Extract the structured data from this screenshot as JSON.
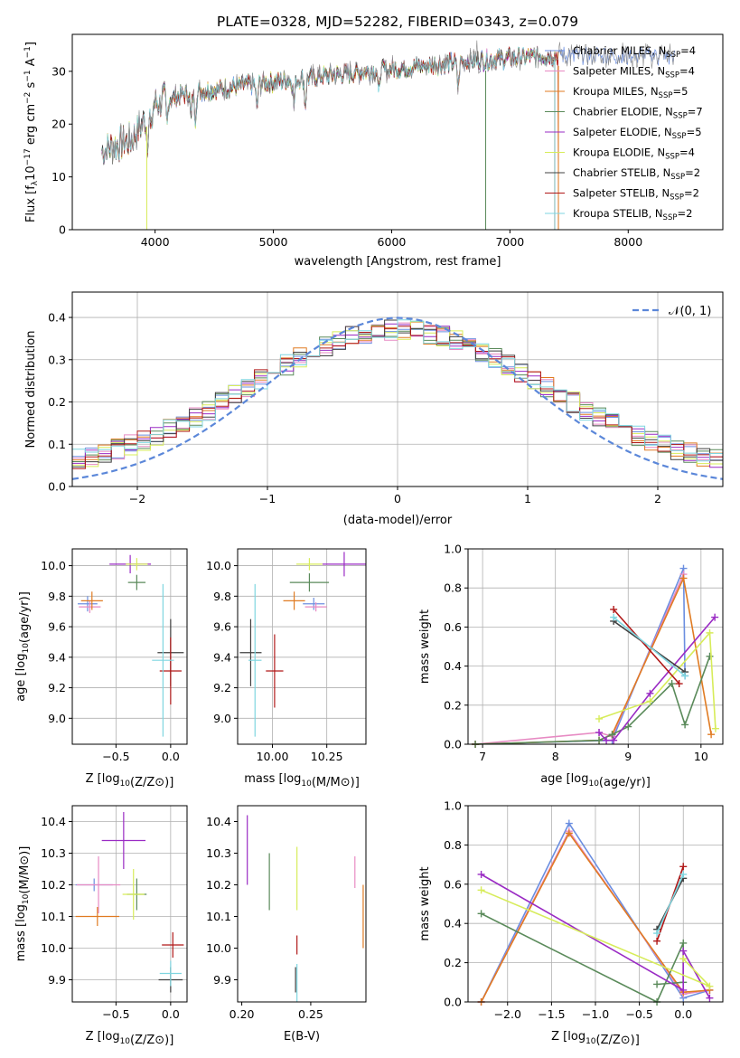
{
  "title": "PLATE=0328, MJD=52282, FIBERID=0343, z=0.079",
  "colors": {
    "chab_miles": "#6b8ee0",
    "salp_miles": "#e78ac3",
    "krou_miles": "#e07b22",
    "chab_elodie": "#5a8a5a",
    "salp_elodie": "#9a2bc4",
    "krou_elodie": "#d7ec5a",
    "chab_stelib": "#404040",
    "salp_stelib": "#b01818",
    "krou_stelib": "#7fd6e0"
  },
  "chart_data": [
    {
      "type": "line",
      "name": "spectrum",
      "xlabel": "wavelength [Angstrom, rest frame]",
      "ylabel": "Flux [fλ10^-17 erg cm^-2 s^-1 A^-1]",
      "xlim": [
        3300,
        8800
      ],
      "ylim": [
        0,
        37
      ],
      "xticks": [
        "4000",
        "5000",
        "6000",
        "7000",
        "8000"
      ],
      "yticks": [
        "0",
        "10",
        "20",
        "30"
      ],
      "legend_placement": "top-right",
      "series": [
        {
          "name": "Chabrier MILES, N_SSP=4",
          "key": "chab_miles"
        },
        {
          "name": "Salpeter MILES, N_SSP=4",
          "key": "salp_miles"
        },
        {
          "name": "Kroupa MILES, N_SSP=5",
          "key": "krou_miles"
        },
        {
          "name": "Chabrier ELODIE, N_SSP=7",
          "key": "chab_elodie"
        },
        {
          "name": "Salpeter ELODIE, N_SSP=5",
          "key": "salp_elodie"
        },
        {
          "name": "Kroupa ELODIE, N_SSP=4",
          "key": "krou_elodie"
        },
        {
          "name": "Chabrier STELIB, N_SSP=2",
          "key": "chab_stelib"
        },
        {
          "name": "Salpeter STELIB, N_SSP=2",
          "key": "salp_stelib"
        },
        {
          "name": "Kroupa STELIB, N_SSP=2",
          "key": "krou_stelib"
        }
      ],
      "continuum": {
        "x": [
          3550,
          3800,
          4000,
          4300,
          5000,
          6000,
          6700,
          7000,
          7400,
          8400
        ],
        "y": [
          15,
          17,
          24,
          26,
          28,
          30.5,
          32,
          32.5,
          33,
          33
        ]
      }
    },
    {
      "type": "bar",
      "name": "residual-histogram",
      "xlabel": "(data-model)/error",
      "ylabel": "Normed distribution",
      "xlim": [
        -2.5,
        2.5
      ],
      "ylim": [
        0,
        0.46
      ],
      "xticks": [
        "−2",
        "−1",
        "0",
        "1",
        "2"
      ],
      "yticks": [
        "0.0",
        "0.1",
        "0.2",
        "0.3",
        "0.4"
      ],
      "grid": true,
      "legend_placement": "top-right",
      "reference_label": "𝒩(0, 1)",
      "bin_width": 0.1
    },
    {
      "type": "scatter",
      "name": "age-vs-Z",
      "xlabel": "Z [log10(Z/Z⊙)]",
      "ylabel": "age  [log10(age/yr)]",
      "xlim": [
        -0.9,
        0.15
      ],
      "ylim": [
        8.83,
        10.11
      ],
      "xticks": [
        "−0.5",
        "0.0"
      ],
      "yticks": [
        "9.0",
        "9.2",
        "9.4",
        "9.6",
        "9.8",
        "10.0"
      ],
      "grid": true,
      "points": [
        {
          "key": "chab_miles",
          "x": -0.76,
          "xerr": 0.09,
          "y": 9.75,
          "yerr": 0.05
        },
        {
          "key": "salp_miles",
          "x": -0.74,
          "xerr": 0.1,
          "y": 9.73,
          "yerr": 0.04
        },
        {
          "key": "krou_miles",
          "x": -0.72,
          "xerr": 0.1,
          "y": 9.77,
          "yerr": 0.06
        },
        {
          "key": "chab_elodie",
          "x": -0.31,
          "xerr": 0.08,
          "y": 9.89,
          "yerr": 0.05
        },
        {
          "key": "salp_elodie",
          "x": -0.37,
          "xerr": 0.19,
          "y": 10.01,
          "yerr": 0.06
        },
        {
          "key": "krou_elodie",
          "x": -0.31,
          "xerr": 0.1,
          "y": 10.01,
          "yerr": 0.04
        },
        {
          "key": "chab_stelib",
          "x": 0.0,
          "xerr": 0.12,
          "y": 9.43,
          "yerr": 0.22
        },
        {
          "key": "salp_stelib",
          "x": 0.0,
          "xerr": 0.1,
          "y": 9.31,
          "yerr": 0.22
        },
        {
          "key": "krou_stelib",
          "x": -0.07,
          "xerr": 0.1,
          "y": 9.38,
          "yerr": 0.5
        }
      ]
    },
    {
      "type": "scatter",
      "name": "age-vs-mass",
      "xlabel": "mass [log10(M/M⊙)]",
      "ylabel": "",
      "xlim": [
        9.84,
        10.43
      ],
      "ylim": [
        8.83,
        10.11
      ],
      "xticks": [
        "10.00",
        "10.25"
      ],
      "yticks": [
        "9.0",
        "9.2",
        "9.4",
        "9.6",
        "9.8",
        "10.0"
      ],
      "grid": true,
      "points": [
        {
          "key": "chab_miles",
          "x": 10.19,
          "xerr": 0.05,
          "y": 9.75,
          "yerr": 0.04
        },
        {
          "key": "salp_miles",
          "x": 10.2,
          "xerr": 0.05,
          "y": 9.73,
          "yerr": 0.03
        },
        {
          "key": "krou_miles",
          "x": 10.1,
          "xerr": 0.05,
          "y": 9.77,
          "yerr": 0.06
        },
        {
          "key": "chab_elodie",
          "x": 10.17,
          "xerr": 0.09,
          "y": 9.89,
          "yerr": 0.06
        },
        {
          "key": "salp_elodie",
          "x": 10.33,
          "xerr": 0.1,
          "y": 10.01,
          "yerr": 0.08
        },
        {
          "key": "krou_elodie",
          "x": 10.17,
          "xerr": 0.06,
          "y": 10.01,
          "yerr": 0.04
        },
        {
          "key": "chab_stelib",
          "x": 9.9,
          "xerr": 0.05,
          "y": 9.43,
          "yerr": 0.22
        },
        {
          "key": "salp_stelib",
          "x": 10.01,
          "xerr": 0.04,
          "y": 9.31,
          "yerr": 0.24
        },
        {
          "key": "krou_stelib",
          "x": 9.92,
          "xerr": 0.03,
          "y": 9.38,
          "yerr": 0.5
        }
      ]
    },
    {
      "type": "line",
      "name": "mass-weight-vs-age",
      "xlabel": "age  [log10(age/yr)]",
      "ylabel": "mass weight",
      "xlim": [
        6.8,
        10.3
      ],
      "ylim": [
        0,
        1
      ],
      "xticks": [
        "7",
        "8",
        "9",
        "10"
      ],
      "yticks": [
        "0.0",
        "0.2",
        "0.4",
        "0.6",
        "0.8",
        "1.0"
      ],
      "grid": true,
      "series": [
        {
          "key": "chab_miles",
          "x": [
            6.9,
            8.78,
            9.76,
            9.78
          ],
          "y": [
            0.0,
            0.02,
            0.9,
            0.35
          ]
        },
        {
          "key": "salp_miles",
          "x": [
            6.9,
            8.6,
            8.78,
            9.76
          ],
          "y": [
            0.0,
            0.06,
            0.04,
            0.87
          ]
        },
        {
          "key": "krou_miles",
          "x": [
            6.9,
            8.6,
            8.78,
            9.76,
            10.14
          ],
          "y": [
            0.0,
            0.02,
            0.05,
            0.85,
            0.05
          ]
        },
        {
          "key": "chab_elodie",
          "x": [
            6.9,
            8.6,
            8.78,
            9.0,
            9.6,
            9.78,
            10.12
          ],
          "y": [
            0.0,
            0.02,
            0.05,
            0.09,
            0.31,
            0.1,
            0.45
          ]
        },
        {
          "key": "salp_elodie",
          "x": [
            8.6,
            8.7,
            8.8,
            9.3,
            10.19
          ],
          "y": [
            0.06,
            0.02,
            0.02,
            0.26,
            0.65
          ]
        },
        {
          "key": "krou_elodie",
          "x": [
            8.6,
            9.3,
            10.12,
            10.2
          ],
          "y": [
            0.13,
            0.22,
            0.57,
            0.08
          ]
        },
        {
          "key": "chab_stelib",
          "x": [
            8.8,
            9.78
          ],
          "y": [
            0.63,
            0.37
          ]
        },
        {
          "key": "salp_stelib",
          "x": [
            8.8,
            9.7
          ],
          "y": [
            0.69,
            0.31
          ]
        },
        {
          "key": "krou_stelib",
          "x": [
            8.8,
            9.78
          ],
          "y": [
            0.65,
            0.35
          ]
        }
      ]
    },
    {
      "type": "scatter",
      "name": "mass-vs-Z",
      "xlabel": "Z [log10(Z/Z⊙)]",
      "ylabel": "mass [log10(M/M⊙)]",
      "xlim": [
        -0.9,
        0.15
      ],
      "ylim": [
        9.83,
        10.45
      ],
      "xticks": [
        "−0.5",
        "0.0"
      ],
      "yticks": [
        "9.9",
        "10.0",
        "10.1",
        "10.2",
        "10.3",
        "10.4"
      ],
      "grid": true,
      "points": [
        {
          "key": "chab_miles",
          "x": -0.7,
          "xerr": 0.17,
          "y": 10.2,
          "yerr": 0.02
        },
        {
          "key": "salp_miles",
          "x": -0.66,
          "xerr": 0.2,
          "y": 10.2,
          "yerr": 0.09
        },
        {
          "key": "krou_miles",
          "x": -0.67,
          "xerr": 0.2,
          "y": 10.1,
          "yerr": 0.03
        },
        {
          "key": "chab_elodie",
          "x": -0.31,
          "xerr": 0.09,
          "y": 10.17,
          "yerr": 0.05
        },
        {
          "key": "salp_elodie",
          "x": -0.43,
          "xerr": 0.2,
          "y": 10.34,
          "yerr": 0.09
        },
        {
          "key": "krou_elodie",
          "x": -0.34,
          "xerr": 0.1,
          "y": 10.17,
          "yerr": 0.08
        },
        {
          "key": "chab_stelib",
          "x": 0.0,
          "xerr": 0.11,
          "y": 9.9,
          "yerr": 0.04
        },
        {
          "key": "salp_stelib",
          "x": 0.02,
          "xerr": 0.1,
          "y": 10.01,
          "yerr": 0.04
        },
        {
          "key": "krou_stelib",
          "x": 0.0,
          "xerr": 0.1,
          "y": 9.92,
          "yerr": 0.04
        }
      ]
    },
    {
      "type": "scatter",
      "name": "mass-vs-EBV",
      "xlabel": "E(B-V)",
      "ylabel": "",
      "xlim": [
        0.197,
        0.29
      ],
      "ylim": [
        9.83,
        10.45
      ],
      "xticks": [
        "0.20",
        "0.25"
      ],
      "yticks": [
        "9.9",
        "10.0",
        "10.1",
        "10.2",
        "10.3",
        "10.4"
      ],
      "points": [
        {
          "key": "salp_elodie",
          "x": 0.204,
          "y": 10.31,
          "yerr": 0.11
        },
        {
          "key": "chab_elodie",
          "x": 0.22,
          "y": 10.21,
          "yerr": 0.09
        },
        {
          "key": "krou_elodie",
          "x": 0.24,
          "y": 10.22,
          "yerr": 0.1
        },
        {
          "key": "salp_miles",
          "x": 0.282,
          "y": 10.24,
          "yerr": 0.05
        },
        {
          "key": "krou_miles",
          "x": 0.288,
          "y": 10.1,
          "yerr": 0.1
        },
        {
          "key": "salp_stelib",
          "x": 0.24,
          "y": 10.01,
          "yerr": 0.03
        },
        {
          "key": "chab_stelib",
          "x": 0.239,
          "y": 9.9,
          "yerr": 0.04
        },
        {
          "key": "krou_stelib",
          "x": 0.24,
          "y": 9.89,
          "yerr": 0.06
        }
      ]
    },
    {
      "type": "line",
      "name": "mass-weight-vs-Z",
      "xlabel": "Z [log10(Z/Z⊙)]",
      "ylabel": "mass weight",
      "xlim": [
        -2.45,
        0.45
      ],
      "ylim": [
        0,
        1
      ],
      "xticks": [
        "−2.0",
        "−1.5",
        "−1.0",
        "−0.5",
        "0.0"
      ],
      "yticks": [
        "0.0",
        "0.2",
        "0.4",
        "0.6",
        "0.8",
        "1.0"
      ],
      "grid": true,
      "series": [
        {
          "key": "chab_miles",
          "x": [
            -2.3,
            -1.3,
            0.0,
            0.3
          ],
          "y": [
            0.0,
            0.91,
            0.02,
            0.06
          ]
        },
        {
          "key": "salp_miles",
          "x": [
            -2.3,
            -1.3,
            0.0,
            0.3
          ],
          "y": [
            0.0,
            0.87,
            0.04,
            0.06
          ]
        },
        {
          "key": "krou_miles",
          "x": [
            -2.3,
            -1.3,
            0.0,
            0.3
          ],
          "y": [
            0.0,
            0.86,
            0.05,
            0.06
          ]
        },
        {
          "key": "chab_elodie",
          "x": [
            -2.3,
            -0.3,
            0.0,
            0.0,
            -0.3
          ],
          "y": [
            0.45,
            0.0,
            0.3,
            0.1,
            0.09
          ]
        },
        {
          "key": "salp_elodie",
          "x": [
            -2.3,
            0.0,
            0.0,
            0.3
          ],
          "y": [
            0.65,
            0.06,
            0.26,
            0.02
          ]
        },
        {
          "key": "krou_elodie",
          "x": [
            -2.3,
            0.3,
            0.0
          ],
          "y": [
            0.57,
            0.08,
            0.22
          ]
        },
        {
          "key": "chab_stelib",
          "x": [
            -0.3,
            0.0
          ],
          "y": [
            0.37,
            0.63
          ]
        },
        {
          "key": "salp_stelib",
          "x": [
            -0.3,
            0.0
          ],
          "y": [
            0.31,
            0.69
          ]
        },
        {
          "key": "krou_stelib",
          "x": [
            -0.3,
            0.0
          ],
          "y": [
            0.35,
            0.65
          ]
        }
      ]
    }
  ]
}
